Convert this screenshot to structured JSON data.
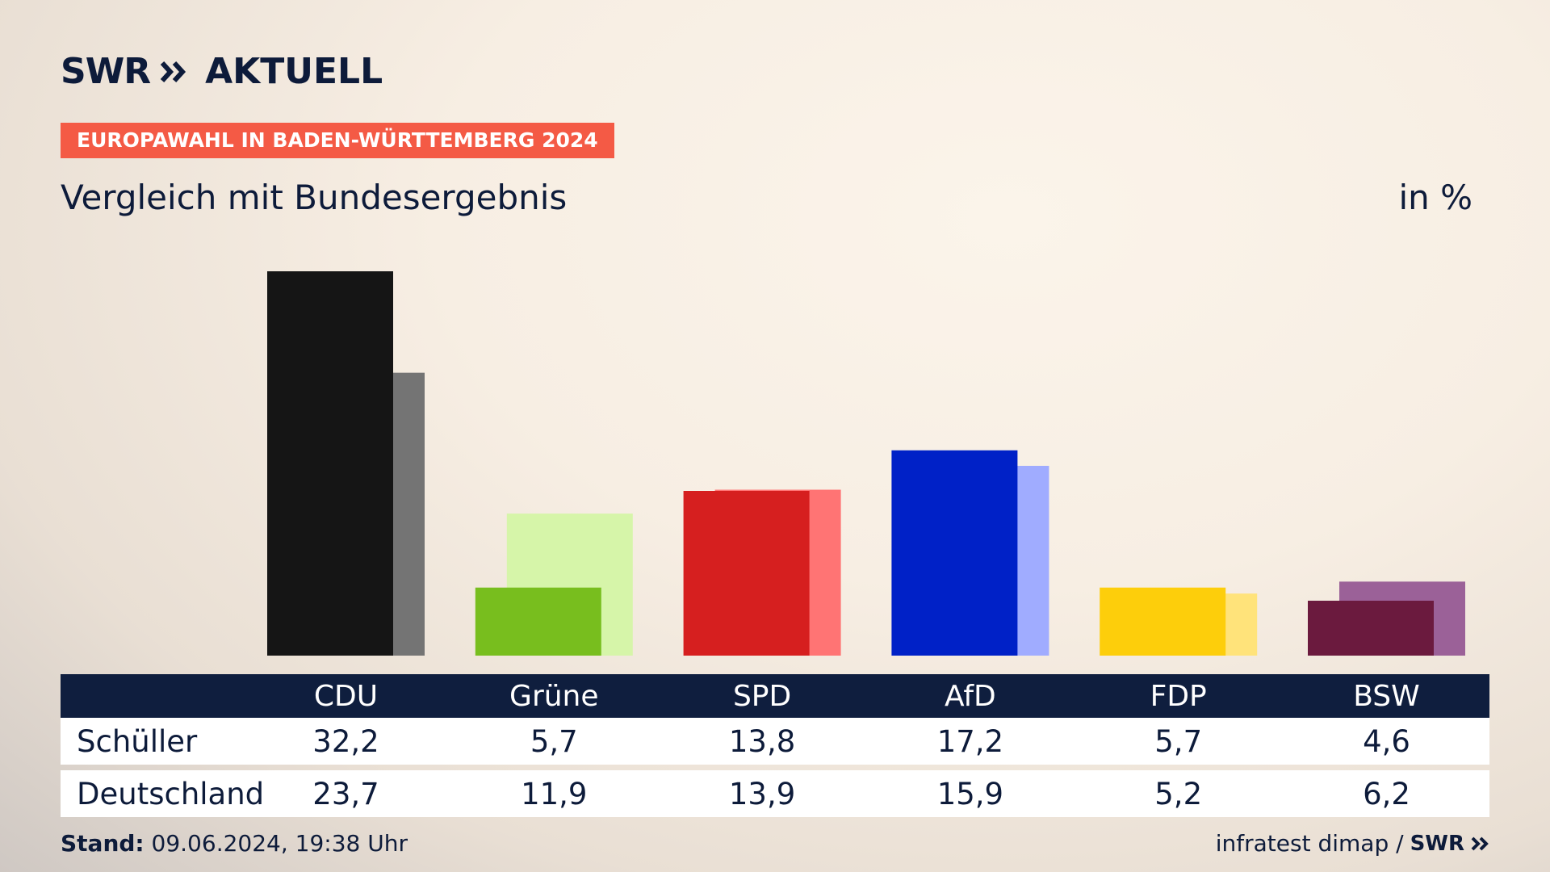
{
  "header": {
    "logo_brand": "SWR",
    "logo_name": "AKTUELL",
    "badge": "EUROPAWAHL IN BADEN-WÜRTTEMBERG 2024",
    "subtitle": "Vergleich mit Bundesergebnis",
    "unit": "in %"
  },
  "colors": {
    "badge": "#f45a45",
    "navy": "#0f1e3e"
  },
  "chart_data": {
    "type": "bar",
    "categories": [
      "CDU",
      "Grüne",
      "SPD",
      "AfD",
      "FDP",
      "BSW"
    ],
    "series": [
      {
        "name": "Schüller",
        "values": [
          32.2,
          5.7,
          13.8,
          17.2,
          5.7,
          4.6
        ],
        "colors": [
          "#151515",
          "#78be1e",
          "#d61f1f",
          "#0021c7",
          "#fdce0b",
          "#6b1a3e"
        ]
      },
      {
        "name": "Deutschland",
        "values": [
          23.7,
          11.9,
          13.9,
          15.9,
          5.2,
          6.2
        ],
        "colors": [
          "#747474",
          "#d6f5a9",
          "#ff7474",
          "#a0acff",
          "#ffe37a",
          "#9b6198"
        ]
      }
    ],
    "ylim": [
      0,
      32.2
    ],
    "grid": false,
    "legend": "table-below"
  },
  "table": {
    "rows": [
      {
        "label": "Schüller",
        "values": [
          "32,2",
          "5,7",
          "13,8",
          "17,2",
          "5,7",
          "4,6"
        ]
      },
      {
        "label": "Deutschland",
        "values": [
          "23,7",
          "11,9",
          "13,9",
          "15,9",
          "5,2",
          "6,2"
        ]
      }
    ]
  },
  "footer": {
    "stand_label": "Stand:",
    "stand_value": "09.06.2024, 19:38 Uhr",
    "source": "infratest dimap /",
    "source_logo": "SWR"
  }
}
